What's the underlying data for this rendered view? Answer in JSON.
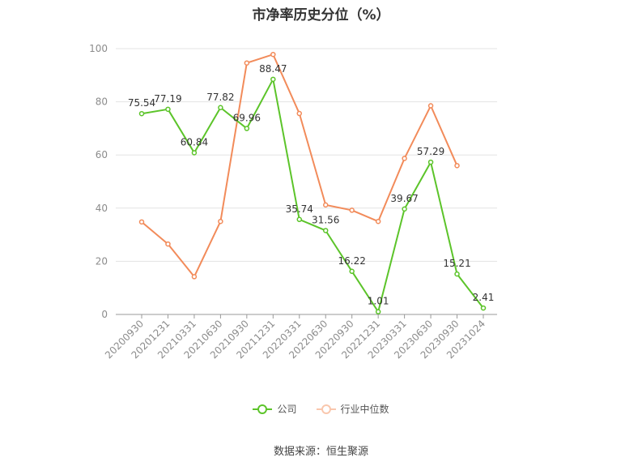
{
  "chart_data": {
    "type": "line",
    "title": "市净率历史分位（%）",
    "categories": [
      "20200930",
      "20201231",
      "20210331",
      "20210630",
      "20210930",
      "20211231",
      "20220331",
      "20220630",
      "20220930",
      "20221231",
      "20230331",
      "20230630",
      "20230930",
      "20231024"
    ],
    "ylim": [
      0,
      100
    ],
    "yticks": [
      0,
      20,
      40,
      60,
      80,
      100
    ],
    "grid": true,
    "legend_position": "bottom",
    "series": [
      {
        "name": "公司",
        "color": "#5cc42a",
        "values": [
          75.54,
          77.19,
          60.84,
          77.82,
          69.96,
          88.47,
          35.74,
          31.56,
          16.22,
          1.01,
          39.67,
          57.29,
          15.21,
          2.41
        ],
        "labels": [
          "75.54",
          "77.19",
          "60.84",
          "77.82",
          "69.96",
          "88.47",
          "35.74",
          "31.56",
          "16.22",
          "1.01",
          "39.67",
          "57.29",
          "15.21",
          "2.41"
        ]
      },
      {
        "name": "行业中位数",
        "color": "#f28b5a",
        "values": [
          34.8,
          26.5,
          14.2,
          35.0,
          94.6,
          97.8,
          75.6,
          41.2,
          39.2,
          35.0,
          58.7,
          78.5,
          56.0,
          null
        ]
      }
    ]
  },
  "source_text": "数据来源：恒生聚源"
}
